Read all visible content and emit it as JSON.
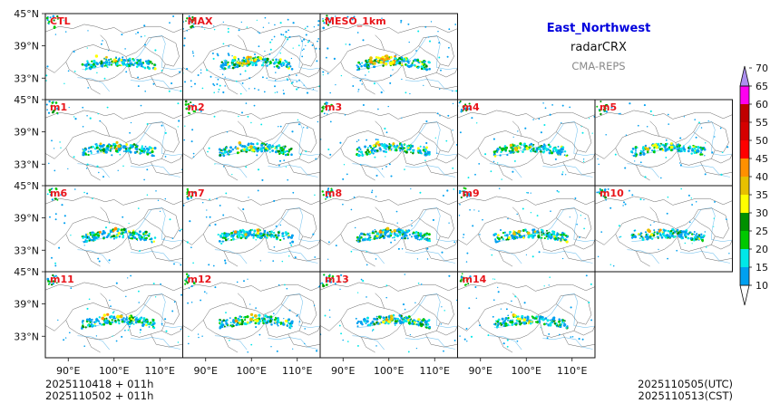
{
  "title": {
    "region": "East_Northwest",
    "variable": "radarCRX",
    "model": "CMA-REPS"
  },
  "footer": {
    "init_utc": "2025110418  +  011h",
    "init_cst": "2025110502  +  011h",
    "valid_utc": "2025110505(UTC)",
    "valid_cst": "2025110513(CST)"
  },
  "colors": {
    "panel_label": "#e8151b",
    "region_title": "#0000dd",
    "model_title": "#888888"
  },
  "chart_data": {
    "type": "heatmap",
    "variable": "radarCRX",
    "x_ticks": [
      "90°E",
      "100°E",
      "110°E"
    ],
    "y_ticks": [
      "45°N",
      "39°N",
      "33°N"
    ],
    "lon_range": [
      85,
      115
    ],
    "lat_range": [
      29,
      45
    ],
    "panels": [
      [
        "CTL",
        "MAX",
        "MESO_1km"
      ],
      [
        "m1",
        "m2",
        "m3",
        "m4",
        "m5"
      ],
      [
        "m6",
        "m7",
        "m8",
        "m9",
        "m10"
      ],
      [
        "m11",
        "m12",
        "m13",
        "m14"
      ]
    ],
    "colorbar": {
      "levels": [
        10,
        15,
        20,
        25,
        30,
        35,
        40,
        45,
        50,
        55,
        60,
        65,
        70
      ],
      "colors": [
        "#00a0f0",
        "#00e8e8",
        "#00c800",
        "#009000",
        "#ffff00",
        "#e7c000",
        "#ff9000",
        "#ff0000",
        "#d60000",
        "#c00000",
        "#ff00f0",
        "#9000b4",
        "#ad90f0"
      ],
      "extend": "both"
    }
  }
}
